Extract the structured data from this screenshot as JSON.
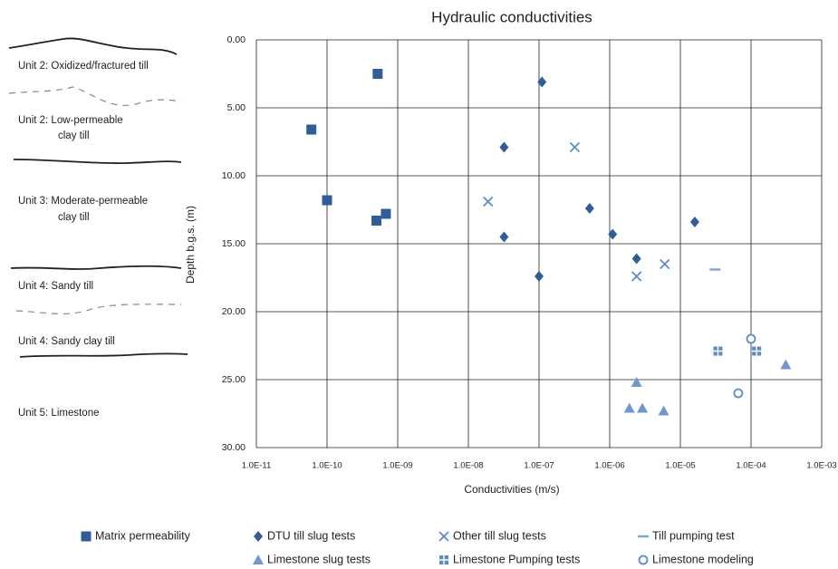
{
  "chart_data": {
    "type": "scatter",
    "title": "Hydraulic conductivities",
    "xlabel": "Conductivities (m/s)",
    "ylabel": "Depth b.g.s. (m)",
    "xscale": "log",
    "yaxis_reversed": true,
    "grid": true,
    "xlim": [
      1e-11,
      0.001
    ],
    "xticks": [
      {
        "value": 1e-11,
        "label": "1.0E-11"
      },
      {
        "value": 1e-10,
        "label": "1.0E-10"
      },
      {
        "value": 1e-09,
        "label": "1.0E-09"
      },
      {
        "value": 1e-08,
        "label": "1.0E-08"
      },
      {
        "value": 1e-07,
        "label": "1.0E-07"
      },
      {
        "value": 1e-06,
        "label": "1.0E-06"
      },
      {
        "value": 1e-05,
        "label": "1.0E-05"
      },
      {
        "value": 0.0001,
        "label": "1.0E-04"
      },
      {
        "value": 0.001,
        "label": "1.0E-03"
      }
    ],
    "ylim": [
      0,
      30
    ],
    "yticks": [
      {
        "value": 0,
        "label": "0.00"
      },
      {
        "value": 5,
        "label": "5.00"
      },
      {
        "value": 10,
        "label": "10.00"
      },
      {
        "value": 15,
        "label": "15.00"
      },
      {
        "value": 20,
        "label": "20.00"
      },
      {
        "value": 25,
        "label": "25.00"
      },
      {
        "value": 30,
        "label": "30.00"
      }
    ],
    "series": [
      {
        "name": "Matrix permeability",
        "color": "#2f5d9a",
        "marker": "square",
        "x": [
          5.2e-10,
          6e-11,
          1e-10,
          5e-10,
          6.8e-10
        ],
        "y": [
          2.5,
          6.6,
          11.8,
          13.3,
          12.8
        ]
      },
      {
        "name": "DTU till slug tests",
        "color": "#2f5d9a",
        "marker": "diamond",
        "x": [
          1.1e-07,
          3.2e-08,
          5.2e-07,
          3.2e-08,
          1.1e-06,
          1e-07,
          2.4e-06,
          1.6e-05
        ],
        "y": [
          3.1,
          7.9,
          12.4,
          14.5,
          14.3,
          17.4,
          16.1,
          13.4
        ]
      },
      {
        "name": "Other till slug tests",
        "color": "#5b8cc8",
        "marker": "x",
        "x": [
          3.2e-07,
          1.9e-08,
          2.4e-06,
          6e-06
        ],
        "y": [
          7.9,
          11.9,
          17.4,
          16.5
        ]
      },
      {
        "name": "Till pumping test",
        "color": "#7fa6d6",
        "marker": "dash",
        "x": [
          3.1e-05
        ],
        "y": [
          16.9
        ]
      },
      {
        "name": "Limestone slug tests",
        "color": "#6e98cf",
        "marker": "triangle",
        "x": [
          2.4e-06,
          1.9e-06,
          2.9e-06,
          5.8e-06,
          0.00031
        ],
        "y": [
          25.2,
          27.1,
          27.1,
          27.3,
          23.9
        ]
      },
      {
        "name": "Limestone Pumping tests",
        "color": "#5b8cc8",
        "marker": "gridsquare",
        "x": [
          3.4e-05,
          0.00012
        ],
        "y": [
          22.9,
          22.9
        ]
      },
      {
        "name": "Limestone modeling",
        "color": "#5b8cc8",
        "marker": "circle",
        "x": [
          0.0001,
          6.6e-05
        ],
        "y": [
          22,
          26
        ]
      }
    ]
  },
  "strata_column": [
    [
      "Unit 2: Oxidized/fractured till"
    ],
    [
      "Unit 2: Low-permeable",
      "clay till"
    ],
    [
      "Unit 3: Moderate-permeable",
      "clay till"
    ],
    [
      "Unit 4: Sandy till"
    ],
    [
      "Unit 4: Sandy clay till"
    ],
    [
      "Unit 5: Limestone"
    ]
  ]
}
